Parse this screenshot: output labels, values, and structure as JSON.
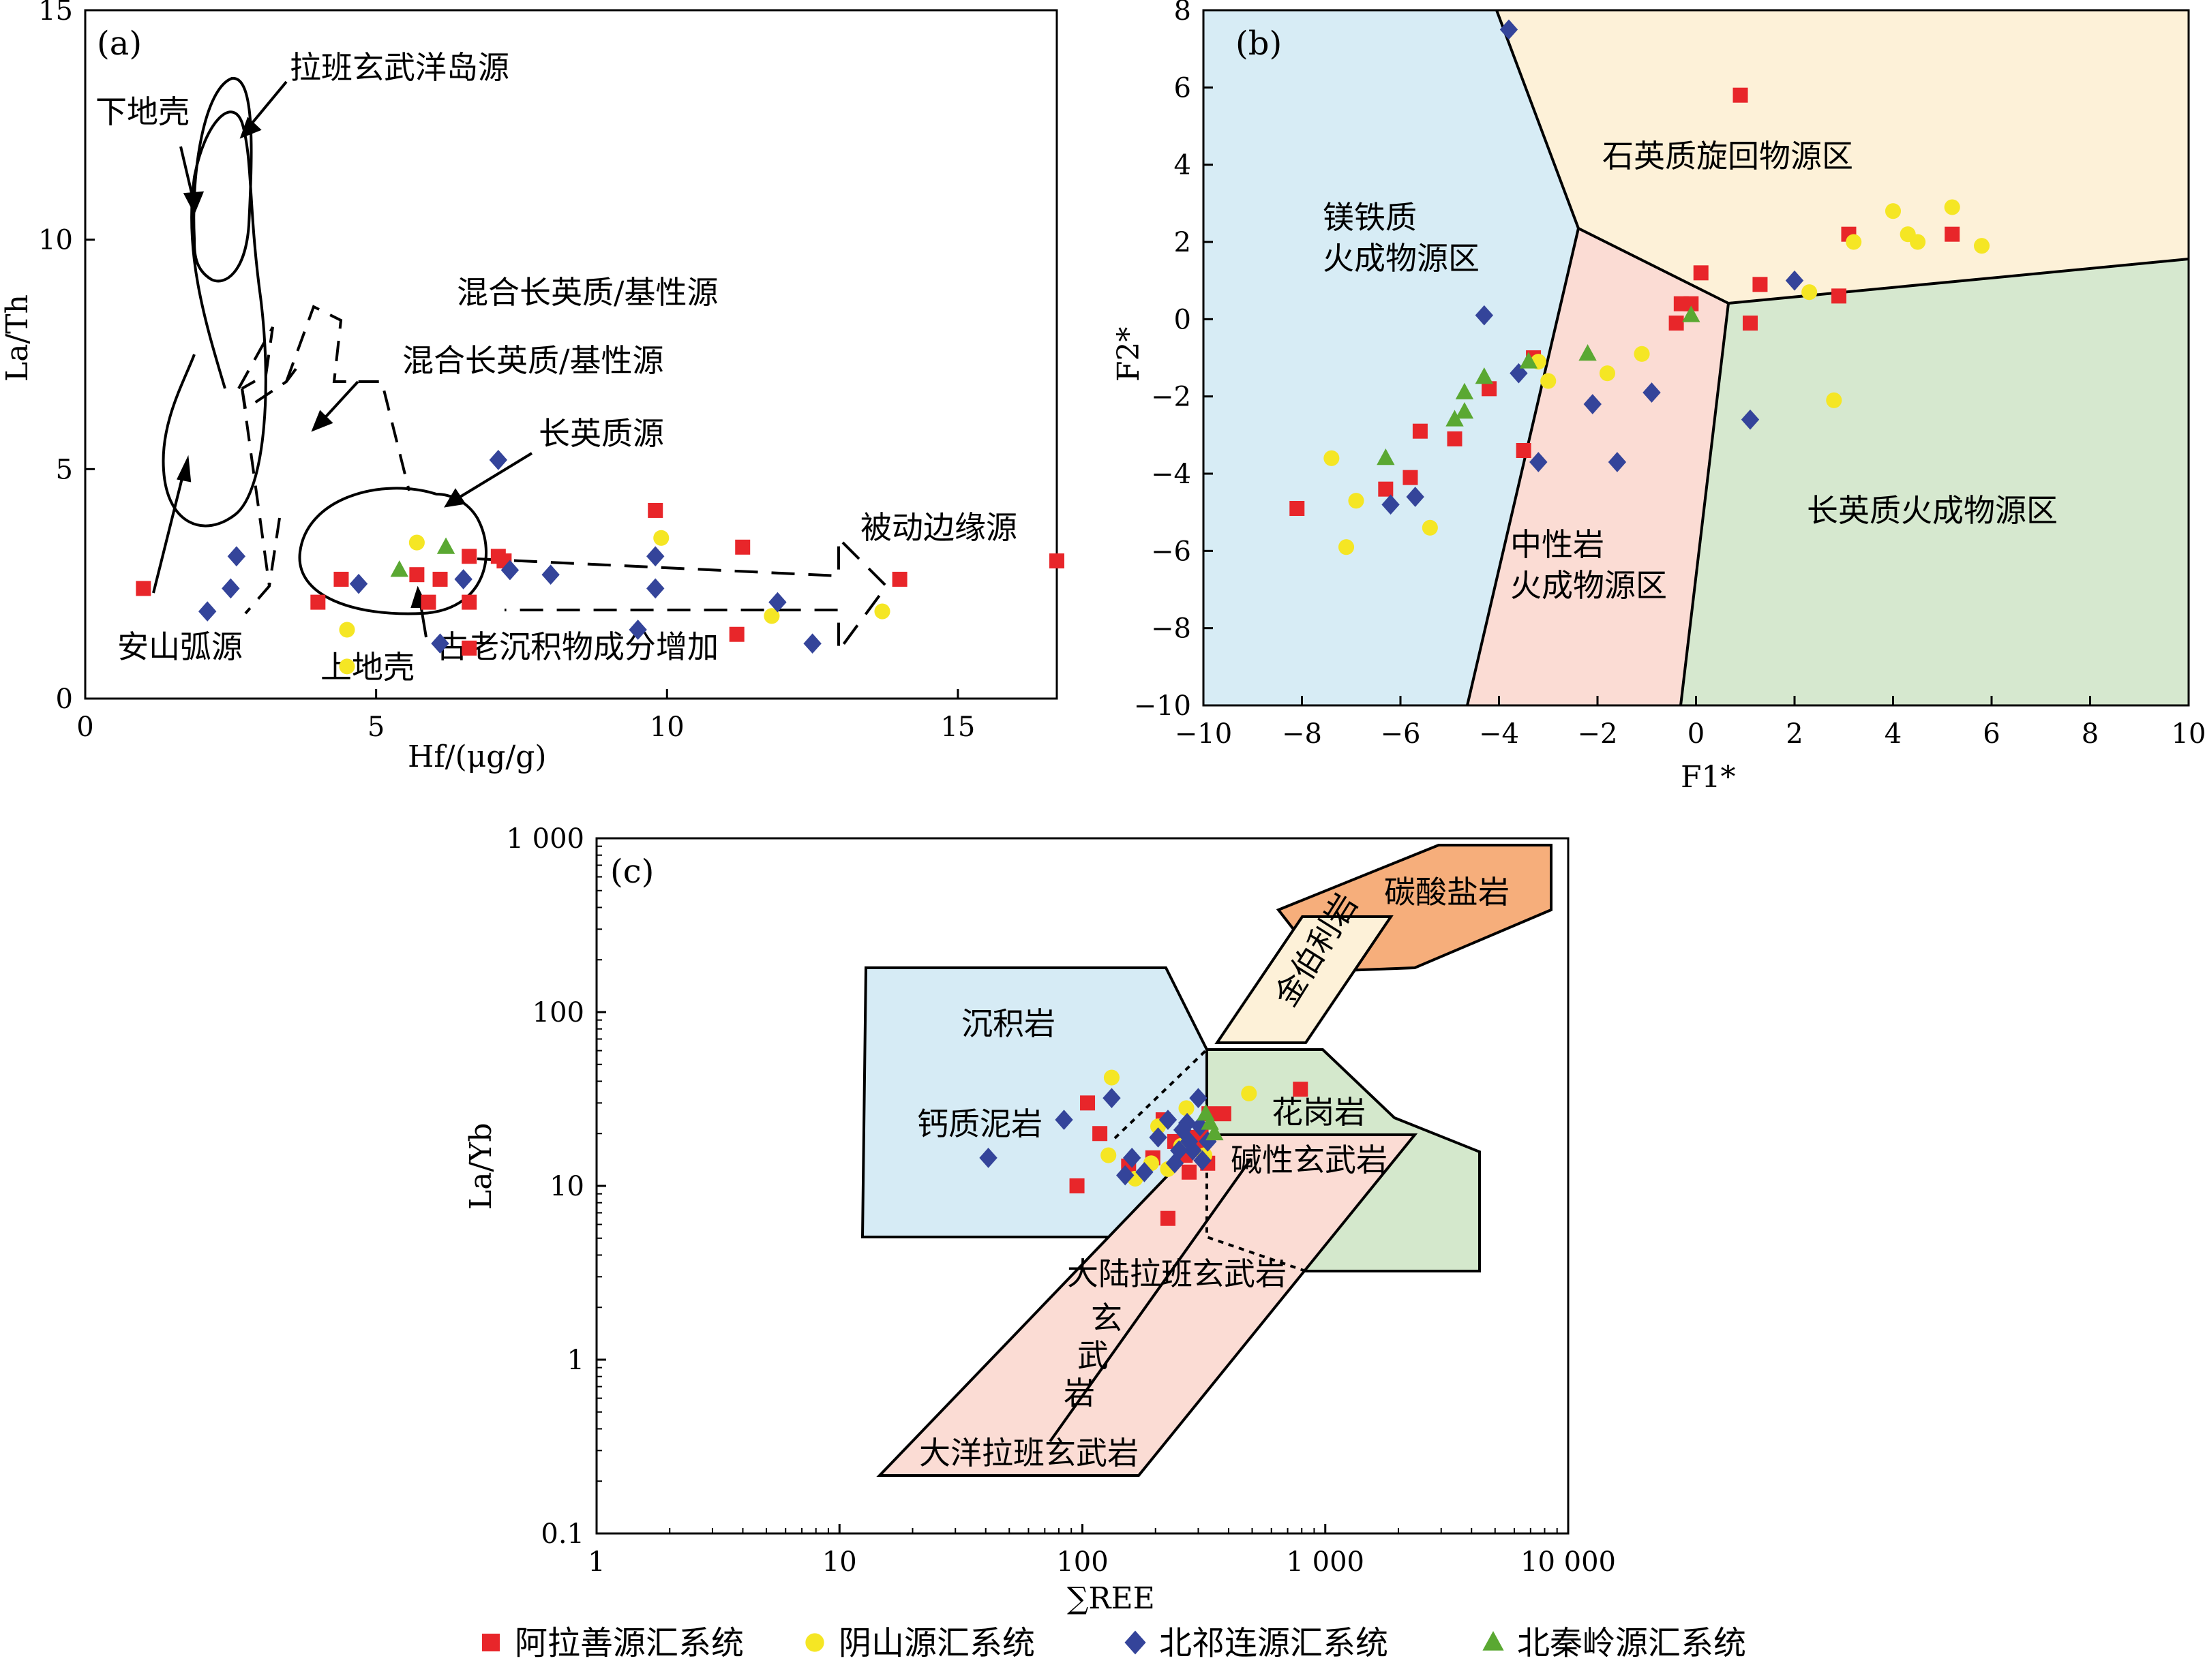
{
  "colors": {
    "alashan": "#e8262a",
    "yinshan": "#f5e624",
    "qilian": "#34449a",
    "qinling": "#5aa832",
    "mafic_region": "#d7ecf5",
    "quartz_region": "#fdf1d8",
    "intermediate_region": "#fbdcd4",
    "felsic_region": "#d6e8cf",
    "sed_region": "#d6ebf5",
    "granite_region": "#d4e8cc",
    "basalt_region": "#fbdcd4",
    "carbonate_region": "#f6ae7b",
    "kimberlite_region": "#fdf1d8"
  },
  "legend": [
    {
      "name": "阿拉善源汇系统",
      "marker": "square",
      "color": "#e8262a"
    },
    {
      "name": "阴山源汇系统",
      "marker": "circle",
      "color": "#f5e624"
    },
    {
      "name": "北祁连源汇系统",
      "marker": "diamond",
      "color": "#34449a"
    },
    {
      "name": "北秦岭源汇系统",
      "marker": "triangle",
      "color": "#5aa832"
    }
  ],
  "chart_data": [
    {
      "id": "a",
      "type": "scatter",
      "panel_label": "(a)",
      "xlabel": "Hf/(μg/g)",
      "ylabel": "La/Th",
      "xlim": [
        0,
        16.7
      ],
      "ylim": [
        0,
        15
      ],
      "xticks": [
        "0",
        "5",
        "10",
        "15"
      ],
      "yticks": [
        "0",
        "5",
        "10",
        "15"
      ],
      "annotations": [
        "拉班玄武洋岛源",
        "下地壳",
        "混合长英质/基性源",
        "混合长英质/基性源",
        "长英质源",
        "被动边缘源",
        "安山弧源",
        "上地壳",
        "古老沉积物成分增加"
      ],
      "series": [
        {
          "name": "阿拉善源汇系统",
          "points": [
            [
              1,
              2.4
            ],
            [
              4,
              2.1
            ],
            [
              4.4,
              2.6
            ],
            [
              5.7,
              2.7
            ],
            [
              5.9,
              2.1
            ],
            [
              6.1,
              2.6
            ],
            [
              6.6,
              2.1
            ],
            [
              6.6,
              3.1
            ],
            [
              6.6,
              1.1
            ],
            [
              7.1,
              3.1
            ],
            [
              7.2,
              3.0
            ],
            [
              9.8,
              4.1
            ],
            [
              11.3,
              3.3
            ],
            [
              11.2,
              1.4
            ],
            [
              14,
              2.6
            ],
            [
              16.7,
              3.0
            ]
          ]
        },
        {
          "name": "阴山源汇系统",
          "points": [
            [
              4.5,
              1.5
            ],
            [
              4.5,
              0.7
            ],
            [
              5.7,
              3.4
            ],
            [
              9.9,
              3.5
            ],
            [
              11.8,
              1.8
            ],
            [
              13.7,
              1.9
            ]
          ]
        },
        {
          "name": "北祁连源汇系统",
          "points": [
            [
              2.1,
              1.9
            ],
            [
              2.5,
              2.4
            ],
            [
              2.6,
              3.1
            ],
            [
              4.7,
              2.5
            ],
            [
              6.1,
              1.2
            ],
            [
              6.5,
              2.6
            ],
            [
              7.1,
              5.2
            ],
            [
              7.3,
              2.8
            ],
            [
              8,
              2.7
            ],
            [
              9.5,
              1.5
            ],
            [
              9.8,
              2.4
            ],
            [
              9.8,
              3.1
            ],
            [
              11.9,
              2.1
            ],
            [
              12.5,
              1.2
            ]
          ]
        },
        {
          "name": "北秦岭源汇系统",
          "points": [
            [
              5.4,
              2.8
            ],
            [
              6.2,
              3.3
            ]
          ]
        }
      ]
    },
    {
      "id": "b",
      "type": "scatter",
      "panel_label": "(b)",
      "xlabel": "F1*",
      "ylabel": "F2*",
      "xlim": [
        -10,
        10
      ],
      "ylim": [
        -10,
        8
      ],
      "xticks": [
        "−10",
        "−8",
        "−6",
        "−4",
        "−2",
        "0",
        "2",
        "4",
        "6",
        "8",
        "10"
      ],
      "yticks": [
        "−10",
        "−8",
        "−6",
        "−4",
        "−2",
        "0",
        "2",
        "4",
        "6",
        "8"
      ],
      "regions": [
        "镁铁质火成物源区",
        "石英质旋回物源区",
        "中性岩火成物源区",
        "长英质火成物源区"
      ],
      "series": [
        {
          "name": "阿拉善源汇系统",
          "points": [
            [
              0.9,
              5.8
            ],
            [
              0.1,
              1.2
            ],
            [
              -0.3,
              0.4
            ],
            [
              -0.1,
              0.4
            ],
            [
              -0.4,
              -0.1
            ],
            [
              1.3,
              0.9
            ],
            [
              1.1,
              -0.1
            ],
            [
              3.1,
              2.2
            ],
            [
              5.2,
              2.2
            ],
            [
              2.9,
              0.6
            ],
            [
              -3.3,
              -1
            ],
            [
              -4.2,
              -1.8
            ],
            [
              -5.6,
              -2.9
            ],
            [
              -3.5,
              -3.4
            ],
            [
              -4.9,
              -3.1
            ],
            [
              -5.8,
              -4.1
            ],
            [
              -6.3,
              -4.4
            ],
            [
              -8.1,
              -4.9
            ]
          ]
        },
        {
          "name": "阴山源汇系统",
          "points": [
            [
              4,
              2.8
            ],
            [
              5.2,
              2.9
            ],
            [
              4.3,
              2.2
            ],
            [
              4.5,
              2
            ],
            [
              3.2,
              2
            ],
            [
              5.8,
              1.9
            ],
            [
              2.3,
              0.7
            ],
            [
              2.8,
              -2.1
            ],
            [
              -1.1,
              -0.9
            ],
            [
              -1.8,
              -1.4
            ],
            [
              -3.2,
              -1.1
            ],
            [
              -3,
              -1.6
            ],
            [
              -7.4,
              -3.6
            ],
            [
              -6.9,
              -4.7
            ],
            [
              -7.1,
              -5.9
            ],
            [
              -5.4,
              -5.4
            ]
          ]
        },
        {
          "name": "北祁连源汇系统",
          "points": [
            [
              -3.8,
              7.5
            ],
            [
              -4.3,
              0.1
            ],
            [
              2.0,
              1.0
            ],
            [
              -3.6,
              -1.4
            ],
            [
              -2.1,
              -2.2
            ],
            [
              -0.9,
              -1.9
            ],
            [
              1.1,
              -2.6
            ],
            [
              -3.2,
              -3.7
            ],
            [
              -1.6,
              -3.7
            ],
            [
              -5.7,
              -4.6
            ],
            [
              -6.2,
              -4.8
            ]
          ]
        },
        {
          "name": "北秦岭源汇系统",
          "points": [
            [
              -0.1,
              0.1
            ],
            [
              -2.2,
              -0.9
            ],
            [
              -3.4,
              -1.1
            ],
            [
              -4.3,
              -1.5
            ],
            [
              -4.7,
              -1.9
            ],
            [
              -4.9,
              -2.6
            ],
            [
              -4.7,
              -2.4
            ],
            [
              -6.3,
              -3.6
            ]
          ]
        }
      ]
    },
    {
      "id": "c",
      "type": "scatter",
      "panel_label": "(c)",
      "xlabel": "∑REE",
      "ylabel": "La/Yb",
      "xscale": "log",
      "yscale": "log",
      "xlim": [
        1,
        10000
      ],
      "ylim": [
        0.1,
        1000
      ],
      "xticks": [
        "1",
        "10",
        "100",
        "1 000",
        "10 000"
      ],
      "yticks": [
        "0.1",
        "1",
        "10",
        "100",
        "1 000"
      ],
      "regions": [
        "碳酸盐岩",
        "金伯利岩",
        "沉积岩",
        "钙质泥岩",
        "花岗岩",
        "碱性玄武岩",
        "大陆拉班玄武岩",
        "玄武岩",
        "大洋拉班玄武岩"
      ],
      "series": [
        {
          "name": "阿拉善源汇系统",
          "points": [
            [
              105,
              30
            ],
            [
              118,
              20
            ],
            [
              95,
              10
            ],
            [
              215,
              24
            ],
            [
              225,
              6.5
            ],
            [
              240,
              18
            ],
            [
              265,
              15
            ],
            [
              275,
              12
            ],
            [
              282,
              19
            ],
            [
              308,
              20
            ],
            [
              312,
              17
            ],
            [
              328,
              13.5
            ],
            [
              332,
              26
            ],
            [
              382,
              26
            ],
            [
              790,
              36
            ],
            [
              155,
              13
            ],
            [
              195,
              14.5
            ]
          ]
        },
        {
          "name": "阴山源汇系统",
          "points": [
            [
              132,
              42
            ],
            [
              128,
              15
            ],
            [
              192,
              13.5
            ],
            [
              225,
              12.5
            ],
            [
              255,
              17
            ],
            [
              268,
              28
            ],
            [
              318,
              15
            ],
            [
              485,
              34
            ],
            [
              205,
              22
            ],
            [
              165,
              11
            ]
          ]
        },
        {
          "name": "北祁连源汇系统",
          "points": [
            [
              41,
              14.5
            ],
            [
              84,
              24
            ],
            [
              132,
              32
            ],
            [
              160,
              14.5
            ],
            [
              150,
              11.5
            ],
            [
              205,
              19
            ],
            [
              225,
              24
            ],
            [
              250,
              16
            ],
            [
              258,
              21
            ],
            [
              270,
              23
            ],
            [
              275,
              18
            ],
            [
              285,
              16
            ],
            [
              300,
              32
            ],
            [
              305,
              22
            ],
            [
              312,
              14
            ],
            [
              328,
              18
            ],
            [
              180,
              12
            ],
            [
              240,
              13.5
            ]
          ]
        },
        {
          "name": "北秦岭源汇系统",
          "points": [
            [
              322,
              26
            ],
            [
              350,
              20
            ],
            [
              335,
              23
            ]
          ]
        }
      ]
    }
  ]
}
